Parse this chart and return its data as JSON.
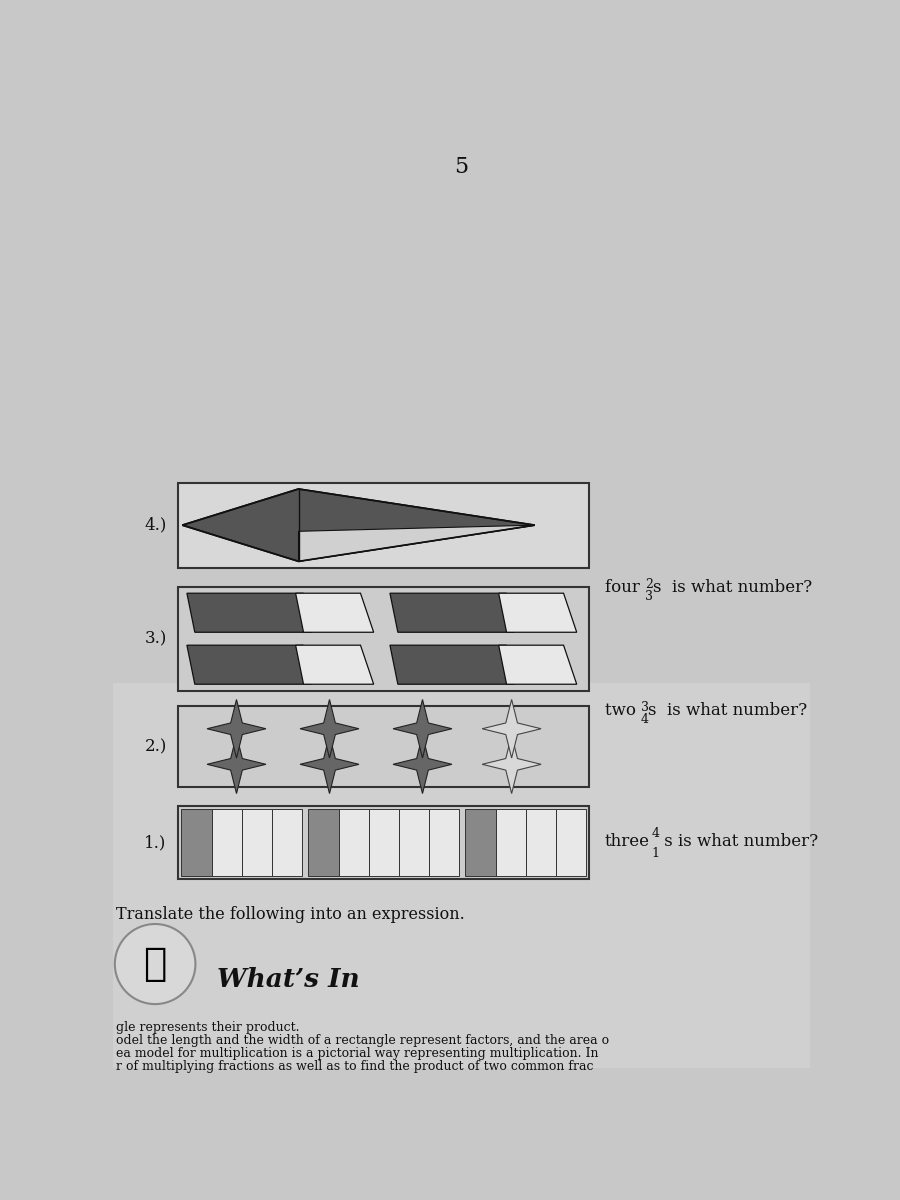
{
  "bg_color": "#c8c8c8",
  "box_bg": "#d4d4d4",
  "title": "What’s In",
  "subtitle": "Translate the following into an expression.",
  "header_line1": "r of multiplying fractions as well as to find the product of two common frac",
  "header_line2": "ea model for multiplication is a pictorial way representing multiplication. In",
  "header_line3": "odel the length and the width of a rectangle represent factors, and the area o",
  "header_line4": "gle represents their product.",
  "q1_label": "1.)",
  "q2_label": "2.)",
  "q3_label": "3.)",
  "q4_label": "4.)",
  "page_num": "5",
  "dark_gray": "#555555",
  "light_gray": "#e0e0e0",
  "box_outline": "#333333",
  "text_color": "#111111"
}
